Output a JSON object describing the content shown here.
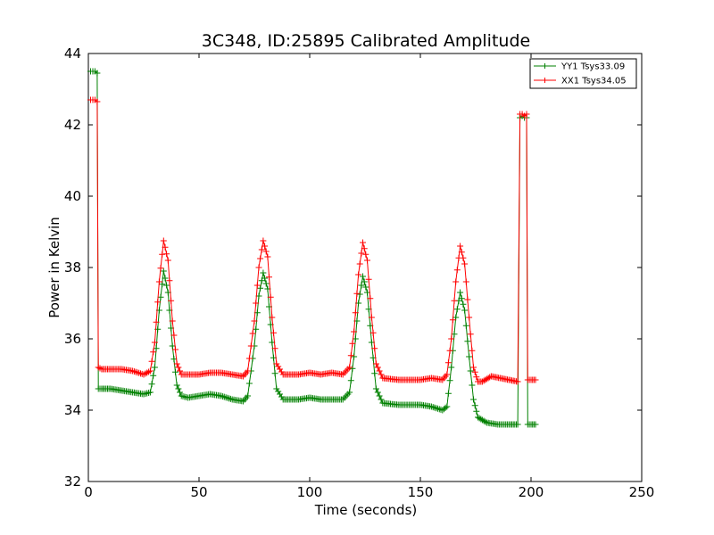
{
  "chart_data": {
    "type": "line",
    "title": "3C348, ID:25895 Calibrated Amplitude",
    "xlabel": "Time (seconds)",
    "ylabel": "Power in Kelvin",
    "xlim": [
      0,
      250
    ],
    "ylim": [
      32,
      44
    ],
    "xticks": [
      0,
      50,
      100,
      150,
      200,
      250
    ],
    "yticks": [
      32,
      34,
      36,
      38,
      40,
      42,
      44
    ],
    "grid": false,
    "legend_position": "top-right",
    "marker": "plus",
    "series": [
      {
        "name": "YY1 Tsys33.09",
        "color": "#008000",
        "points": [
          [
            1,
            43.5
          ],
          [
            2,
            43.5
          ],
          [
            3,
            43.5
          ],
          [
            4,
            43.45
          ],
          [
            4.5,
            34.6
          ],
          [
            6,
            34.6
          ],
          [
            10,
            34.6
          ],
          [
            15,
            34.55
          ],
          [
            20,
            34.5
          ],
          [
            25,
            34.45
          ],
          [
            28,
            34.5
          ],
          [
            30,
            35.2
          ],
          [
            32,
            36.8
          ],
          [
            34,
            37.9
          ],
          [
            36,
            37.3
          ],
          [
            38,
            35.8
          ],
          [
            40,
            34.7
          ],
          [
            42,
            34.4
          ],
          [
            45,
            34.35
          ],
          [
            50,
            34.4
          ],
          [
            55,
            34.45
          ],
          [
            60,
            34.4
          ],
          [
            65,
            34.3
          ],
          [
            70,
            34.25
          ],
          [
            72,
            34.4
          ],
          [
            75,
            35.8
          ],
          [
            77,
            37.2
          ],
          [
            79,
            37.85
          ],
          [
            81,
            37.4
          ],
          [
            83,
            35.9
          ],
          [
            85,
            34.6
          ],
          [
            88,
            34.3
          ],
          [
            95,
            34.3
          ],
          [
            100,
            34.35
          ],
          [
            105,
            34.3
          ],
          [
            110,
            34.3
          ],
          [
            115,
            34.3
          ],
          [
            118,
            34.5
          ],
          [
            120,
            35.5
          ],
          [
            122,
            37.0
          ],
          [
            124,
            37.75
          ],
          [
            126,
            37.3
          ],
          [
            128,
            35.9
          ],
          [
            130,
            34.6
          ],
          [
            133,
            34.2
          ],
          [
            140,
            34.15
          ],
          [
            145,
            34.15
          ],
          [
            150,
            34.15
          ],
          [
            155,
            34.1
          ],
          [
            160,
            34.0
          ],
          [
            162,
            34.1
          ],
          [
            164,
            35.2
          ],
          [
            166,
            36.6
          ],
          [
            168,
            37.3
          ],
          [
            170,
            36.8
          ],
          [
            172,
            35.5
          ],
          [
            174,
            34.3
          ],
          [
            176,
            33.8
          ],
          [
            180,
            33.65
          ],
          [
            185,
            33.6
          ],
          [
            190,
            33.6
          ],
          [
            194,
            33.6
          ],
          [
            195,
            42.2
          ],
          [
            196,
            42.25
          ],
          [
            197,
            42.2
          ],
          [
            198,
            42.2
          ],
          [
            198.5,
            33.6
          ],
          [
            200,
            33.6
          ],
          [
            202,
            33.6
          ]
        ]
      },
      {
        "name": "XX1 Tsys34.05",
        "color": "#ff0000",
        "points": [
          [
            1,
            42.7
          ],
          [
            2,
            42.7
          ],
          [
            3,
            42.7
          ],
          [
            4,
            42.65
          ],
          [
            4.5,
            35.2
          ],
          [
            6,
            35.15
          ],
          [
            10,
            35.15
          ],
          [
            15,
            35.15
          ],
          [
            20,
            35.1
          ],
          [
            25,
            35.0
          ],
          [
            28,
            35.1
          ],
          [
            30,
            35.9
          ],
          [
            32,
            37.6
          ],
          [
            34,
            38.75
          ],
          [
            36,
            38.2
          ],
          [
            38,
            36.5
          ],
          [
            40,
            35.3
          ],
          [
            42,
            35.0
          ],
          [
            45,
            35.0
          ],
          [
            50,
            35.0
          ],
          [
            55,
            35.05
          ],
          [
            60,
            35.05
          ],
          [
            65,
            35.0
          ],
          [
            70,
            34.95
          ],
          [
            72,
            35.1
          ],
          [
            75,
            36.5
          ],
          [
            77,
            38.0
          ],
          [
            79,
            38.75
          ],
          [
            81,
            38.3
          ],
          [
            83,
            36.6
          ],
          [
            85,
            35.3
          ],
          [
            88,
            35.0
          ],
          [
            95,
            35.0
          ],
          [
            100,
            35.05
          ],
          [
            105,
            35.0
          ],
          [
            110,
            35.05
          ],
          [
            115,
            35.0
          ],
          [
            118,
            35.2
          ],
          [
            120,
            36.2
          ],
          [
            122,
            37.8
          ],
          [
            124,
            38.7
          ],
          [
            126,
            38.2
          ],
          [
            128,
            36.6
          ],
          [
            130,
            35.3
          ],
          [
            133,
            34.9
          ],
          [
            140,
            34.85
          ],
          [
            145,
            34.85
          ],
          [
            150,
            34.85
          ],
          [
            155,
            34.9
          ],
          [
            160,
            34.85
          ],
          [
            162,
            35.0
          ],
          [
            164,
            36.0
          ],
          [
            166,
            37.6
          ],
          [
            168,
            38.6
          ],
          [
            170,
            38.1
          ],
          [
            172,
            36.6
          ],
          [
            174,
            35.2
          ],
          [
            176,
            34.8
          ],
          [
            178,
            34.8
          ],
          [
            182,
            34.95
          ],
          [
            186,
            34.9
          ],
          [
            190,
            34.85
          ],
          [
            194,
            34.8
          ],
          [
            195,
            42.3
          ],
          [
            196,
            42.3
          ],
          [
            197,
            42.25
          ],
          [
            198,
            42.3
          ],
          [
            198.5,
            34.85
          ],
          [
            200,
            34.85
          ],
          [
            202,
            34.85
          ]
        ]
      }
    ]
  }
}
